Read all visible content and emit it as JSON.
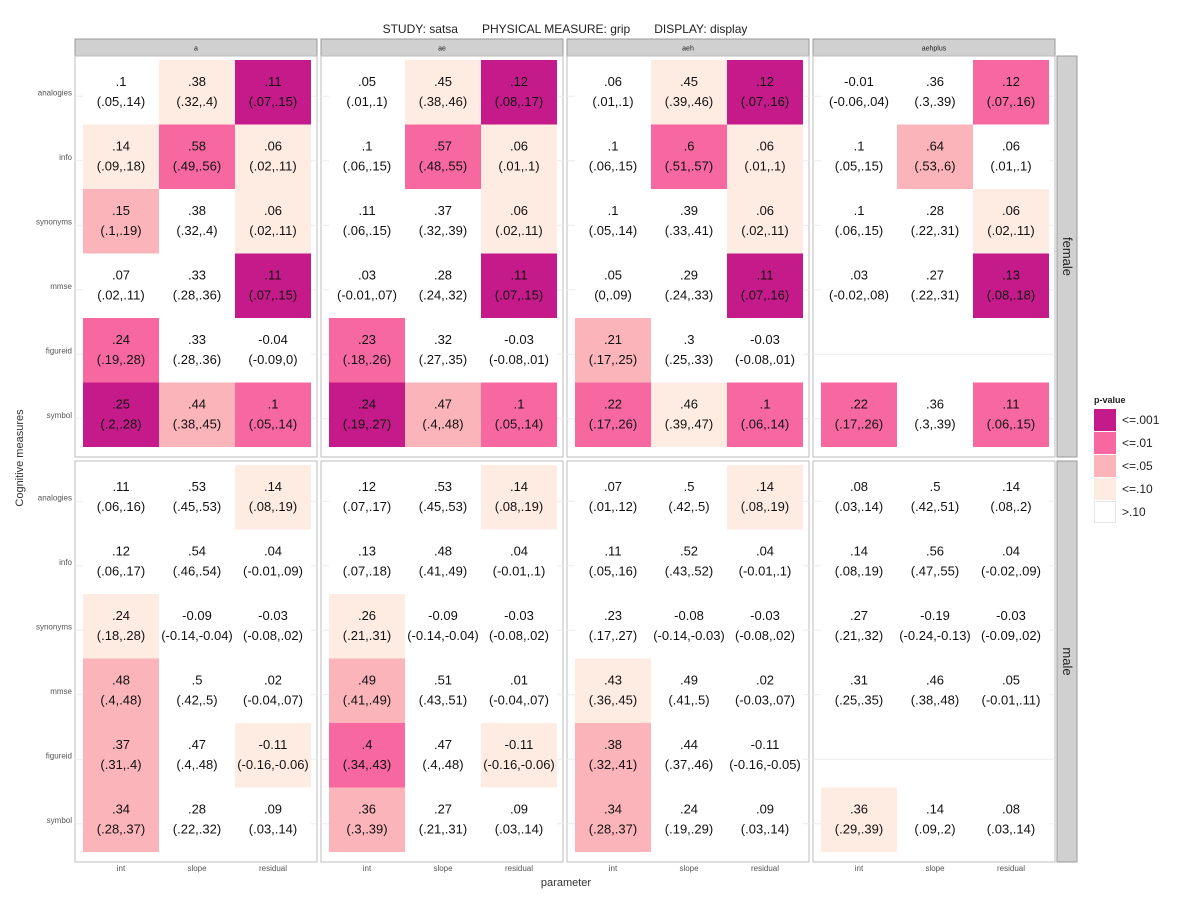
{
  "title": {
    "study": "STUDY: satsa",
    "measure": "PHYSICAL MEASURE: grip",
    "display": "DISPLAY: display"
  },
  "chart_data": {
    "type": "heatmap",
    "xlabel": "parameter",
    "ylabel": "Cognitive measures",
    "facet_columns": [
      "a",
      "ae",
      "aeh",
      "aehplus"
    ],
    "facet_rows": [
      "female",
      "male"
    ],
    "x_categories": [
      "int",
      "slope",
      "residual"
    ],
    "y_categories": [
      "analogies",
      "info",
      "synonyms",
      "mmse",
      "figureid",
      "symbol"
    ],
    "legend": {
      "title": "p-value",
      "position": "right",
      "levels": [
        {
          "label": "<=.001",
          "color": "#c51b8a"
        },
        {
          "label": "<=.01",
          "color": "#f768a1"
        },
        {
          "label": "<=.05",
          "color": "#fbb4b9"
        },
        {
          "label": "<=.10",
          "color": "#feebe2"
        },
        {
          "label": ">.10",
          "color": "#ffffff"
        }
      ]
    },
    "panels": {
      "female": {
        "a": [
          [
            [
              ".1",
              "(.05,.14)",
              4
            ],
            [
              ".38",
              "(.32,.4)",
              3
            ],
            [
              ".11",
              "(.07,.15)",
              0
            ]
          ],
          [
            [
              ".14",
              "(.09,.18)",
              3
            ],
            [
              ".58",
              "(.49,.56)",
              1
            ],
            [
              ".06",
              "(.02,.11)",
              3
            ]
          ],
          [
            [
              ".15",
              "(.1,.19)",
              2
            ],
            [
              ".38",
              "(.32,.4)",
              4
            ],
            [
              ".06",
              "(.02,.11)",
              3
            ]
          ],
          [
            [
              ".07",
              "(.02,.11)",
              4
            ],
            [
              ".33",
              "(.28,.36)",
              4
            ],
            [
              ".11",
              "(.07,.15)",
              0
            ]
          ],
          [
            [
              ".24",
              "(.19,.28)",
              1
            ],
            [
              ".33",
              "(.28,.36)",
              4
            ],
            [
              "-0.04",
              "(-0.09,0)",
              4
            ]
          ],
          [
            [
              ".25",
              "(.2,.28)",
              0
            ],
            [
              ".44",
              "(.38,.45)",
              2
            ],
            [
              ".1",
              "(.05,.14)",
              1
            ]
          ]
        ],
        "ae": [
          [
            [
              ".05",
              "(.01,.1)",
              4
            ],
            [
              ".45",
              "(.38,.46)",
              3
            ],
            [
              ".12",
              "(.08,.17)",
              0
            ]
          ],
          [
            [
              ".1",
              "(.06,.15)",
              4
            ],
            [
              ".57",
              "(.48,.55)",
              1
            ],
            [
              ".06",
              "(.01,.1)",
              3
            ]
          ],
          [
            [
              ".11",
              "(.06,.15)",
              4
            ],
            [
              ".37",
              "(.32,.39)",
              4
            ],
            [
              ".06",
              "(.02,.11)",
              3
            ]
          ],
          [
            [
              ".03",
              "(-0.01,.07)",
              4
            ],
            [
              ".28",
              "(.24,.32)",
              4
            ],
            [
              ".11",
              "(.07,.15)",
              0
            ]
          ],
          [
            [
              ".23",
              "(.18,.26)",
              1
            ],
            [
              ".32",
              "(.27,.35)",
              4
            ],
            [
              "-0.03",
              "(-0.08,.01)",
              4
            ]
          ],
          [
            [
              ".24",
              "(.19,.27)",
              0
            ],
            [
              ".47",
              "(.4,.48)",
              2
            ],
            [
              ".1",
              "(.05,.14)",
              1
            ]
          ]
        ],
        "aeh": [
          [
            [
              ".06",
              "(.01,.1)",
              4
            ],
            [
              ".45",
              "(.39,.46)",
              3
            ],
            [
              ".12",
              "(.07,.16)",
              0
            ]
          ],
          [
            [
              ".1",
              "(.06,.15)",
              4
            ],
            [
              ".6",
              "(.51,.57)",
              1
            ],
            [
              ".06",
              "(.01,.1)",
              3
            ]
          ],
          [
            [
              ".1",
              "(.05,.14)",
              4
            ],
            [
              ".39",
              "(.33,.41)",
              4
            ],
            [
              ".06",
              "(.02,.11)",
              3
            ]
          ],
          [
            [
              ".05",
              "(0,.09)",
              4
            ],
            [
              ".29",
              "(.24,.33)",
              4
            ],
            [
              ".11",
              "(.07,.16)",
              0
            ]
          ],
          [
            [
              ".21",
              "(.17,.25)",
              2
            ],
            [
              ".3",
              "(.25,.33)",
              4
            ],
            [
              "-0.03",
              "(-0.08,.01)",
              4
            ]
          ],
          [
            [
              ".22",
              "(.17,.26)",
              1
            ],
            [
              ".46",
              "(.39,.47)",
              3
            ],
            [
              ".1",
              "(.06,.14)",
              1
            ]
          ]
        ],
        "aehplus": [
          [
            [
              "-0.01",
              "(-0.06,.04)",
              4
            ],
            [
              ".36",
              "(.3,.39)",
              4
            ],
            [
              ".12",
              "(.07,.16)",
              1
            ]
          ],
          [
            [
              ".1",
              "(.05,.15)",
              4
            ],
            [
              ".64",
              "(.53,.6)",
              2
            ],
            [
              ".06",
              "(.01,.1)",
              4
            ]
          ],
          [
            [
              ".1",
              "(.06,.15)",
              4
            ],
            [
              ".28",
              "(.22,.31)",
              4
            ],
            [
              ".06",
              "(.02,.11)",
              3
            ]
          ],
          [
            [
              ".03",
              "(-0.02,.08)",
              4
            ],
            [
              ".27",
              "(.22,.31)",
              4
            ],
            [
              ".13",
              "(.08,.18)",
              0
            ]
          ],
          null,
          [
            [
              ".22",
              "(.17,.26)",
              1
            ],
            [
              ".36",
              "(.3,.39)",
              4
            ],
            [
              ".11",
              "(.06,.15)",
              1
            ]
          ]
        ]
      },
      "male": {
        "a": [
          [
            [
              ".11",
              "(.06,.16)",
              4
            ],
            [
              ".53",
              "(.45,.53)",
              4
            ],
            [
              ".14",
              "(.08,.19)",
              3
            ]
          ],
          [
            [
              ".12",
              "(.06,.17)",
              4
            ],
            [
              ".54",
              "(.46,.54)",
              4
            ],
            [
              ".04",
              "(-0.01,.09)",
              4
            ]
          ],
          [
            [
              ".24",
              "(.18,.28)",
              3
            ],
            [
              "-0.09",
              "(-0.14,-0.04)",
              4
            ],
            [
              "-0.03",
              "(-0.08,.02)",
              4
            ]
          ],
          [
            [
              ".48",
              "(.4,.48)",
              2
            ],
            [
              ".5",
              "(.42,.5)",
              4
            ],
            [
              ".02",
              "(-0.04,.07)",
              4
            ]
          ],
          [
            [
              ".37",
              "(.31,.4)",
              2
            ],
            [
              ".47",
              "(.4,.48)",
              4
            ],
            [
              "-0.11",
              "(-0.16,-0.06)",
              3
            ]
          ],
          [
            [
              ".34",
              "(.28,.37)",
              2
            ],
            [
              ".28",
              "(.22,.32)",
              4
            ],
            [
              ".09",
              "(.03,.14)",
              4
            ]
          ]
        ],
        "ae": [
          [
            [
              ".12",
              "(.07,.17)",
              4
            ],
            [
              ".53",
              "(.45,.53)",
              4
            ],
            [
              ".14",
              "(.08,.19)",
              3
            ]
          ],
          [
            [
              ".13",
              "(.07,.18)",
              4
            ],
            [
              ".48",
              "(.41,.49)",
              4
            ],
            [
              ".04",
              "(-0.01,.1)",
              4
            ]
          ],
          [
            [
              ".26",
              "(.21,.31)",
              3
            ],
            [
              "-0.09",
              "(-0.14,-0.04)",
              4
            ],
            [
              "-0.03",
              "(-0.08,.02)",
              4
            ]
          ],
          [
            [
              ".49",
              "(.41,.49)",
              2
            ],
            [
              ".51",
              "(.43,.51)",
              4
            ],
            [
              ".01",
              "(-0.04,.07)",
              4
            ]
          ],
          [
            [
              ".4",
              "(.34,.43)",
              1
            ],
            [
              ".47",
              "(.4,.48)",
              4
            ],
            [
              "-0.11",
              "(-0.16,-0.06)",
              3
            ]
          ],
          [
            [
              ".36",
              "(.3,.39)",
              2
            ],
            [
              ".27",
              "(.21,.31)",
              4
            ],
            [
              ".09",
              "(.03,.14)",
              4
            ]
          ]
        ],
        "aeh": [
          [
            [
              ".07",
              "(.01,.12)",
              4
            ],
            [
              ".5",
              "(.42,.5)",
              4
            ],
            [
              ".14",
              "(.08,.19)",
              3
            ]
          ],
          [
            [
              ".11",
              "(.05,.16)",
              4
            ],
            [
              ".52",
              "(.43,.52)",
              4
            ],
            [
              ".04",
              "(-0.01,.1)",
              4
            ]
          ],
          [
            [
              ".23",
              "(.17,.27)",
              4
            ],
            [
              "-0.08",
              "(-0.14,-0.03)",
              4
            ],
            [
              "-0.03",
              "(-0.08,.02)",
              4
            ]
          ],
          [
            [
              ".43",
              "(.36,.45)",
              3
            ],
            [
              ".49",
              "(.41,.5)",
              4
            ],
            [
              ".02",
              "(-0.03,.07)",
              4
            ]
          ],
          [
            [
              ".38",
              "(.32,.41)",
              2
            ],
            [
              ".44",
              "(.37,.46)",
              4
            ],
            [
              "-0.11",
              "(-0.16,-0.05)",
              4
            ]
          ],
          [
            [
              ".34",
              "(.28,.37)",
              2
            ],
            [
              ".24",
              "(.19,.29)",
              4
            ],
            [
              ".09",
              "(.03,.14)",
              4
            ]
          ]
        ],
        "aehplus": [
          [
            [
              ".08",
              "(.03,.14)",
              4
            ],
            [
              ".5",
              "(.42,.51)",
              4
            ],
            [
              ".14",
              "(.08,.2)",
              4
            ]
          ],
          [
            [
              ".14",
              "(.08,.19)",
              4
            ],
            [
              ".56",
              "(.47,.55)",
              4
            ],
            [
              ".04",
              "(-0.02,.09)",
              4
            ]
          ],
          [
            [
              ".27",
              "(.21,.32)",
              4
            ],
            [
              "-0.19",
              "(-0.24,-0.13)",
              4
            ],
            [
              "-0.03",
              "(-0.09,.02)",
              4
            ]
          ],
          [
            [
              ".31",
              "(.25,.35)",
              4
            ],
            [
              ".46",
              "(.38,.48)",
              4
            ],
            [
              ".05",
              "(-0.01,.11)",
              4
            ]
          ],
          null,
          [
            [
              ".36",
              "(.29,.39)",
              3
            ],
            [
              ".14",
              "(.09,.2)",
              4
            ],
            [
              ".08",
              "(.03,.14)",
              4
            ]
          ]
        ]
      }
    }
  }
}
